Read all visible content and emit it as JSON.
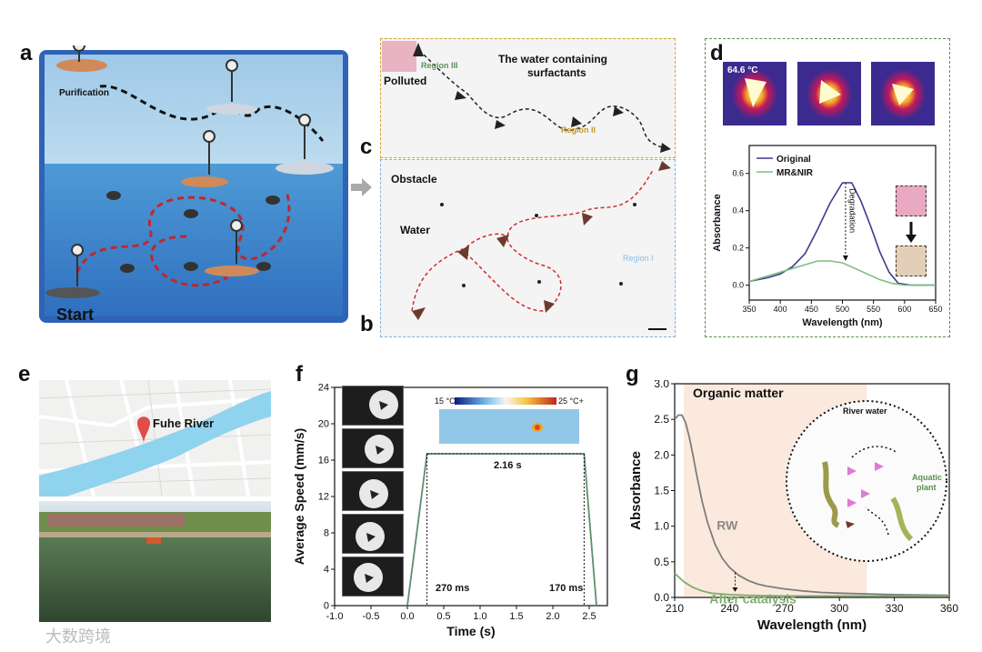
{
  "panels": {
    "a": "a",
    "b": "b",
    "c": "c",
    "d": "d",
    "e": "e",
    "f": "f",
    "g": "g"
  },
  "panel_a": {
    "purification": "Purification",
    "start": "Start"
  },
  "panel_bc": {
    "region3": "Region III",
    "polluted": "Polluted",
    "water_title_1": "The water containing",
    "water_title_2": "surfactants",
    "region2": "Region II",
    "obstacle": "Obstacle",
    "water": "Water",
    "region1": "Region I"
  },
  "panel_d": {
    "temp": "64.6 °C",
    "chart_data": {
      "type": "line",
      "xlabel": "Wavelength (nm)",
      "ylabel": "Absorbance",
      "xlim": [
        350,
        650
      ],
      "ylim": [
        -0.08,
        0.75
      ],
      "xticks": [
        350,
        400,
        450,
        500,
        550,
        600,
        650
      ],
      "yticks": [
        0.0,
        0.2,
        0.4,
        0.6
      ],
      "annotation": "Degradation",
      "series": [
        {
          "name": "Original",
          "color": "#3b3b8c",
          "x": [
            350,
            380,
            400,
            420,
            440,
            460,
            480,
            500,
            515,
            530,
            545,
            560,
            575,
            590,
            610,
            630,
            650
          ],
          "y": [
            0.02,
            0.04,
            0.06,
            0.1,
            0.17,
            0.3,
            0.44,
            0.55,
            0.55,
            0.45,
            0.32,
            0.18,
            0.07,
            0.01,
            0.0,
            0.0,
            0.0
          ]
        },
        {
          "name": "MR&NIR",
          "color": "#7fbf7f",
          "x": [
            350,
            380,
            400,
            420,
            440,
            460,
            480,
            500,
            520,
            540,
            560,
            580,
            600,
            620,
            650
          ],
          "y": [
            0.02,
            0.05,
            0.07,
            0.09,
            0.11,
            0.13,
            0.13,
            0.12,
            0.09,
            0.06,
            0.03,
            0.01,
            0.0,
            0.0,
            0.0
          ]
        }
      ]
    }
  },
  "panel_e": {
    "river": "Fuhe River"
  },
  "panel_f": {
    "colorbar_min": "15 °C",
    "colorbar_max": "25 °C+",
    "duration": "2.16 s",
    "t_start": "270 ms",
    "t_end": "170 ms",
    "chart_data": {
      "type": "line",
      "xlabel": "Time (s)",
      "ylabel": "Average Speed (mm/s)",
      "xlim": [
        -1.0,
        2.75
      ],
      "ylim": [
        0,
        24
      ],
      "xticks": [
        -1.0,
        -0.5,
        0.0,
        0.5,
        1.0,
        1.5,
        2.0,
        2.5
      ],
      "yticks": [
        0,
        4,
        8,
        12,
        16,
        20,
        24
      ],
      "series": [
        {
          "color": "#5e8f6e",
          "x": [
            0,
            0.27,
            2.43,
            2.6
          ],
          "y": [
            0,
            16.7,
            16.7,
            0
          ]
        }
      ]
    }
  },
  "panel_g": {
    "organic": "Organic matter",
    "river_water": "River water",
    "aquatic": "Aquatic",
    "plant": "plant",
    "chart_data": {
      "type": "line",
      "xlabel": "Wavelength (nm)",
      "ylabel": "Absorbance",
      "xlim": [
        210,
        360
      ],
      "ylim": [
        0,
        3.0
      ],
      "xticks": [
        210,
        240,
        270,
        300,
        330,
        360
      ],
      "yticks": [
        0.0,
        0.5,
        1.0,
        1.5,
        2.0,
        2.5,
        3.0
      ],
      "series": [
        {
          "name": "RW",
          "color": "#7d7d7d",
          "x": [
            210,
            212,
            214,
            216,
            218,
            220,
            222,
            225,
            228,
            232,
            236,
            240,
            245,
            250,
            255,
            260,
            270,
            280,
            290,
            300,
            315,
            330,
            345,
            360
          ],
          "y": [
            2.5,
            2.56,
            2.56,
            2.45,
            2.25,
            2.0,
            1.72,
            1.35,
            1.05,
            0.75,
            0.55,
            0.42,
            0.31,
            0.24,
            0.19,
            0.16,
            0.12,
            0.09,
            0.07,
            0.06,
            0.05,
            0.04,
            0.035,
            0.03
          ]
        },
        {
          "name": "After catalysis",
          "color": "#7fae6f",
          "x": [
            210,
            215,
            220,
            225,
            230,
            240,
            250,
            270,
            300,
            330,
            360
          ],
          "y": [
            0.34,
            0.22,
            0.14,
            0.09,
            0.06,
            0.04,
            0.03,
            0.02,
            0.02,
            0.02,
            0.02
          ]
        }
      ]
    }
  },
  "watermark": "大数跨境"
}
